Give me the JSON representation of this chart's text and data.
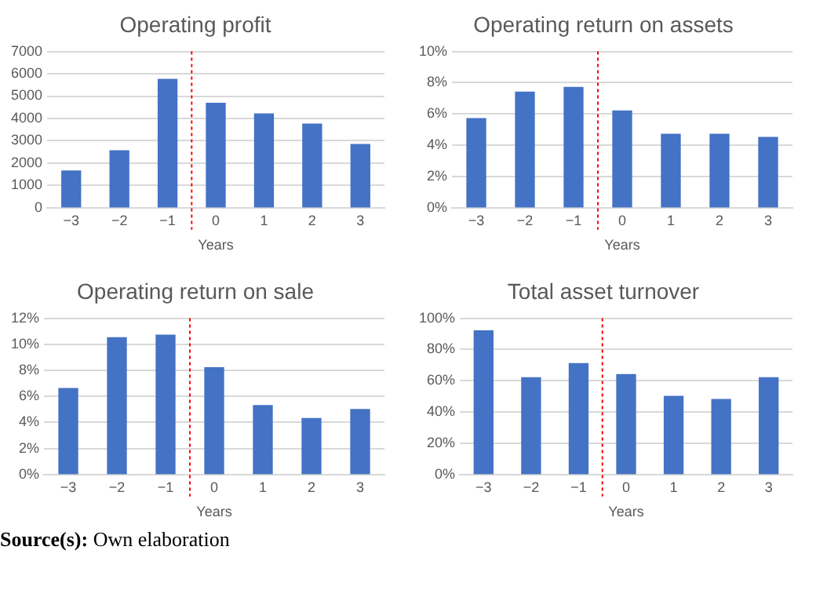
{
  "chart_data": [
    {
      "type": "bar",
      "title": "Operating profit",
      "xlabel": "Years",
      "x": [
        -3,
        -2,
        -1,
        0,
        1,
        2,
        3
      ],
      "values": [
        1650,
        2550,
        5750,
        4680,
        4200,
        3750,
        2830
      ],
      "color": "#4472c4",
      "xlim": [
        -3.5,
        3.5
      ],
      "xticks": [
        {
          "value": -3,
          "label": "−3"
        },
        {
          "value": -2,
          "label": "−2"
        },
        {
          "value": -1,
          "label": "−1"
        },
        0,
        1,
        2,
        3
      ],
      "ylim": [
        0,
        7000
      ],
      "yticks": [
        0,
        1000,
        2000,
        3000,
        4000,
        5000,
        6000,
        7000
      ],
      "grid": "y",
      "ref_lines": [
        {
          "axis": "x",
          "value": -0.5,
          "color": "#ff0000",
          "line_style": "dotted"
        }
      ]
    },
    {
      "type": "bar",
      "title": "Operating return on assets",
      "xlabel": "Years",
      "x": [
        -3,
        -2,
        -1,
        0,
        1,
        2,
        3
      ],
      "values": [
        5.7,
        7.4,
        7.7,
        6.2,
        4.7,
        4.7,
        4.5
      ],
      "color": "#4472c4",
      "xlim": [
        -3.5,
        3.5
      ],
      "xticks": [
        {
          "value": -3,
          "label": "−3"
        },
        {
          "value": -2,
          "label": "−2"
        },
        {
          "value": -1,
          "label": "−1"
        },
        0,
        1,
        2,
        3
      ],
      "ylim": [
        0,
        10
      ],
      "yticks": [
        {
          "value": 0,
          "label": "0%"
        },
        {
          "value": 2,
          "label": "2%"
        },
        {
          "value": 4,
          "label": "4%"
        },
        {
          "value": 6,
          "label": "6%"
        },
        {
          "value": 8,
          "label": "8%"
        },
        {
          "value": 10,
          "label": "10%"
        }
      ],
      "grid": "y",
      "ref_lines": [
        {
          "axis": "x",
          "value": -0.5,
          "color": "#ff0000",
          "line_style": "dotted"
        }
      ]
    },
    {
      "type": "bar",
      "title": "Operating return on sale",
      "xlabel": "Years",
      "x": [
        -3,
        -2,
        -1,
        0,
        1,
        2,
        3
      ],
      "values": [
        6.6,
        10.5,
        10.7,
        8.2,
        5.3,
        4.3,
        5.0
      ],
      "color": "#4472c4",
      "xlim": [
        -3.5,
        3.5
      ],
      "xticks": [
        {
          "value": -3,
          "label": "−3"
        },
        {
          "value": -2,
          "label": "−2"
        },
        {
          "value": -1,
          "label": "−1"
        },
        0,
        1,
        2,
        3
      ],
      "ylim": [
        0,
        12
      ],
      "yticks": [
        {
          "value": 0,
          "label": "0%"
        },
        {
          "value": 2,
          "label": "2%"
        },
        {
          "value": 4,
          "label": "4%"
        },
        {
          "value": 6,
          "label": "6%"
        },
        {
          "value": 8,
          "label": "8%"
        },
        {
          "value": 10,
          "label": "10%"
        },
        {
          "value": 12,
          "label": "12%"
        }
      ],
      "grid": "y",
      "ref_lines": [
        {
          "axis": "x",
          "value": -0.5,
          "color": "#ff0000",
          "line_style": "dotted"
        }
      ],
      "annotations": [
        "Source(s): Own elaboration"
      ]
    },
    {
      "type": "bar",
      "title": "Total asset turnover",
      "xlabel": "Years",
      "x": [
        -3,
        -2,
        -1,
        0,
        1,
        2,
        3
      ],
      "values": [
        92,
        62,
        71,
        64,
        50,
        48,
        62
      ],
      "color": "#4472c4",
      "xlim": [
        -3.5,
        3.5
      ],
      "xticks": [
        {
          "value": -3,
          "label": "−3"
        },
        {
          "value": -2,
          "label": "−2"
        },
        {
          "value": -1,
          "label": "−1"
        },
        0,
        1,
        2,
        3
      ],
      "ylim": [
        0,
        100
      ],
      "yticks": [
        {
          "value": 0,
          "label": "0%"
        },
        {
          "value": 20,
          "label": "20%"
        },
        {
          "value": 40,
          "label": "40%"
        },
        {
          "value": 60,
          "label": "60%"
        },
        {
          "value": 80,
          "label": "80%"
        },
        {
          "value": 100,
          "label": "100%"
        }
      ],
      "grid": "y",
      "ref_lines": [
        {
          "axis": "x",
          "value": -0.5,
          "color": "#ff0000",
          "line_style": "dotted"
        }
      ]
    }
  ]
}
